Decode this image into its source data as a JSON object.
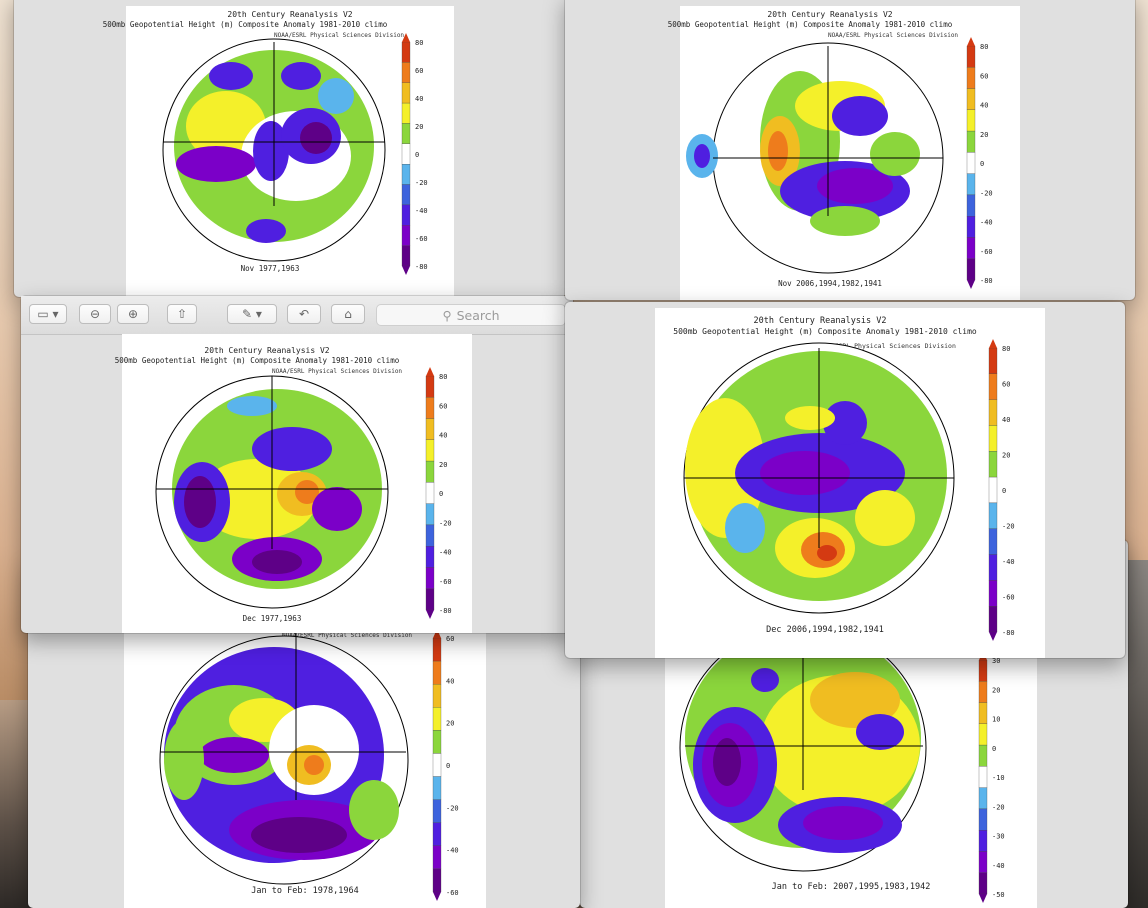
{
  "colors": {
    "bar": [
      "#5e0087",
      "#7b00c8",
      "#4f1fe0",
      "#3d63dd",
      "#5ab4ec",
      "#ffffff",
      "#8bd63c",
      "#f4f02a",
      "#f0bd21",
      "#ee7c1c",
      "#d43a12"
    ],
    "map_purple": "#6b10c4",
    "map_yellow": "#f0e82c"
  },
  "toolbar": {
    "search_placeholder": "Search",
    "icons": [
      "sidebar-icon",
      "zoom-out-icon",
      "zoom-in-icon",
      "share-icon",
      "markup-icon",
      "rotate-icon",
      "toolbox-icon"
    ]
  },
  "windows": [
    {
      "title_line1": "20th Century Reanalysis V2",
      "title_line2": "500mb Geopotential Height (m) Composite Anomaly 1981-2010 climo",
      "credit": "NOAA/ESRL Physical Sciences Division",
      "caption": "Nov 1977,1963",
      "ticks": [
        "80",
        "60",
        "40",
        "20",
        "0",
        "-20",
        "-40",
        "-60",
        "-80"
      ]
    },
    {
      "title_line1": "20th Century Reanalysis V2",
      "title_line2": "500mb Geopotential Height (m) Composite Anomaly 1981-2010 climo",
      "credit": "NOAA/ESRL Physical Sciences Division",
      "caption": "Nov 2006,1994,1982,1941",
      "ticks": [
        "80",
        "60",
        "40",
        "20",
        "0",
        "-20",
        "-40",
        "-60",
        "-80"
      ]
    },
    {
      "title_line1": "20th Century Reanalysis V2",
      "title_line2": "500mb Geopotential Height (m) Composite Anomaly 1981-2010 climo",
      "credit": "NOAA/ESRL Physical Sciences Division",
      "caption": "Dec 1977,1963",
      "ticks": [
        "80",
        "60",
        "40",
        "20",
        "0",
        "-20",
        "-40",
        "-60",
        "-80"
      ]
    },
    {
      "title_line1": "20th Century Reanalysis V2",
      "title_line2": "500mb Geopotential Height (m) Composite Anomaly 1981-2010 climo",
      "credit": "NOAA/ESRL Physical Sciences Division",
      "caption": "Dec 2006,1994,1982,1941",
      "ticks": [
        "80",
        "60",
        "40",
        "20",
        "0",
        "-20",
        "-40",
        "-60",
        "-80"
      ]
    },
    {
      "credit": "NOAA/ESRL Physical Sciences Division",
      "caption": "Jan to Feb: 1978,1964",
      "ticks": [
        "60",
        "40",
        "20",
        "0",
        "-20",
        "-40",
        "-60"
      ]
    },
    {
      "caption": "Jan to Feb: 2007,1995,1983,1942",
      "ticks": [
        "30",
        "20",
        "10",
        "0",
        "-10",
        "-20",
        "-30",
        "-40",
        "-50"
      ]
    }
  ]
}
